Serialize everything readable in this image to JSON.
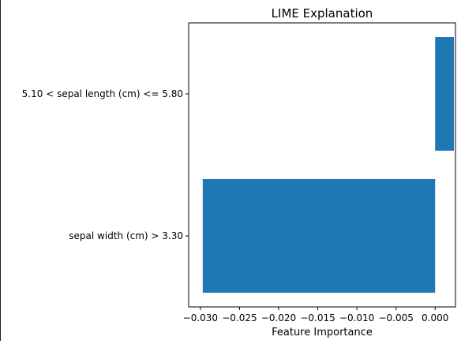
{
  "chart_data": {
    "type": "bar",
    "orientation": "horizontal",
    "title": "LIME Explanation",
    "xlabel": "Feature Importance",
    "ylabel": "",
    "categories": [
      "sepal width (cm) > 3.30",
      "5.10 < sepal length (cm) <= 5.80"
    ],
    "values": [
      -0.0297,
      0.0024
    ],
    "xlim": [
      -0.0315,
      0.0026
    ],
    "xticks": [
      -0.03,
      -0.025,
      -0.02,
      -0.015,
      -0.01,
      -0.005,
      0.0
    ],
    "xtick_labels": [
      "−0.030",
      "−0.025",
      "−0.020",
      "−0.015",
      "−0.010",
      "−0.005",
      "0.000"
    ],
    "bar_color": "#1f77b4",
    "grid": false,
    "legend": "none"
  }
}
